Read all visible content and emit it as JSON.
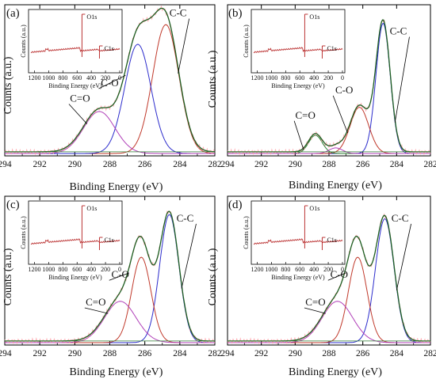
{
  "chart_data": [
    {
      "type": "line",
      "panel_label": "(a)",
      "xlabel": "Binding Energy (eV)",
      "ylabel": "Counts (a.u.)",
      "xlim": [
        294,
        282
      ],
      "xticks": [
        "294",
        "292",
        "290",
        "288",
        "286",
        "284",
        "282"
      ],
      "peaks": [
        {
          "name": "C-C",
          "center": 284.8,
          "height": 0.92,
          "sigma": 0.75,
          "color": "#c0392b",
          "label_x": 284.1,
          "label_y": 0.98
        },
        {
          "name": "C-O",
          "center": 286.4,
          "height": 0.78,
          "sigma": 0.75,
          "color": "#2c2ccc",
          "label_x": 288.0,
          "label_y": 0.48
        },
        {
          "name": "C=O",
          "center": 288.6,
          "height": 0.3,
          "sigma": 0.9,
          "color": "#b03fb8",
          "label_x": 289.7,
          "label_y": 0.37
        }
      ],
      "inset": {
        "xlabel": "Binding Energy (eV)",
        "ylabel": "Counts (a.u.)",
        "xticks": [
          "1200",
          "1000",
          "800",
          "600",
          "400",
          "200",
          "0"
        ],
        "peaks": [
          "O1s",
          "C1s"
        ]
      }
    },
    {
      "type": "line",
      "panel_label": "(b)",
      "xlabel": "Binding Energy (eV)",
      "ylabel": "Counts (a.u.)",
      "xlim": [
        294,
        282
      ],
      "xticks": [
        "294",
        "292",
        "290",
        "288",
        "286",
        "284",
        "282"
      ],
      "peaks": [
        {
          "name": "C-C",
          "center": 284.8,
          "height": 0.93,
          "sigma": 0.42,
          "color": "#2c2ccc",
          "label_x": 283.9,
          "label_y": 0.85
        },
        {
          "name": "C-O",
          "center": 286.2,
          "height": 0.33,
          "sigma": 0.55,
          "color": "#c0392b",
          "label_x": 287.1,
          "label_y": 0.43
        },
        {
          "name": "C=O",
          "center": 288.8,
          "height": 0.13,
          "sigma": 0.4,
          "color": "#2e7d32",
          "label_x": 289.4,
          "label_y": 0.25
        },
        {
          "name": "",
          "center": 287.6,
          "height": 0.04,
          "sigma": 0.4,
          "color": "#b03fb8"
        }
      ],
      "inset": {
        "xlabel": "Binding Energy (eV)",
        "ylabel": "Counts (a.u.)",
        "xticks": [
          "1200",
          "1000",
          "800",
          "600",
          "400",
          "200",
          "0"
        ],
        "peaks": [
          "O1s",
          "C1s"
        ]
      }
    },
    {
      "type": "line",
      "panel_label": "(c)",
      "xlabel": "Binding Energy (eV)",
      "ylabel": "Counts (a.u.)",
      "xlim": [
        294,
        282
      ],
      "xticks": [
        "294",
        "292",
        "290",
        "288",
        "286",
        "284",
        "282"
      ],
      "peaks": [
        {
          "name": "C-C",
          "center": 284.6,
          "height": 0.93,
          "sigma": 0.55,
          "color": "#2c2ccc",
          "label_x": 283.7,
          "label_y": 0.88
        },
        {
          "name": "C-O",
          "center": 286.2,
          "height": 0.62,
          "sigma": 0.55,
          "color": "#c0392b",
          "label_x": 287.4,
          "label_y": 0.47
        },
        {
          "name": "C=O",
          "center": 287.4,
          "height": 0.3,
          "sigma": 0.9,
          "color": "#b03fb8",
          "label_x": 288.8,
          "label_y": 0.27
        }
      ],
      "inset": {
        "xlabel": "Binding Energy (eV)",
        "ylabel": "Counts (a.u.)",
        "xticks": [
          "1200",
          "1000",
          "800",
          "600",
          "400",
          "200",
          "0"
        ],
        "peaks": [
          "O1s",
          "C1s"
        ]
      }
    },
    {
      "type": "line",
      "panel_label": "(d)",
      "xlabel": "Binding Energy (eV)",
      "ylabel": "Counts (a.u.)",
      "xlim": [
        294,
        282
      ],
      "xticks": [
        "294",
        "292",
        "290",
        "288",
        "286",
        "284",
        "282"
      ],
      "peaks": [
        {
          "name": "C-C",
          "center": 284.7,
          "height": 0.9,
          "sigma": 0.55,
          "color": "#2c2ccc",
          "label_x": 283.8,
          "label_y": 0.88
        },
        {
          "name": "C-O",
          "center": 286.3,
          "height": 0.62,
          "sigma": 0.55,
          "color": "#c0392b",
          "label_x": 287.4,
          "label_y": 0.47
        },
        {
          "name": "C=O",
          "center": 287.5,
          "height": 0.3,
          "sigma": 0.9,
          "color": "#b03fb8",
          "label_x": 288.8,
          "label_y": 0.27
        }
      ],
      "inset": {
        "xlabel": "Binding Energy (eV)",
        "ylabel": "Counts (a.u.)",
        "xticks": [
          "1200",
          "1000",
          "800",
          "600",
          "400",
          "200",
          "0"
        ],
        "peaks": [
          "O1s",
          "C1s"
        ]
      }
    }
  ]
}
